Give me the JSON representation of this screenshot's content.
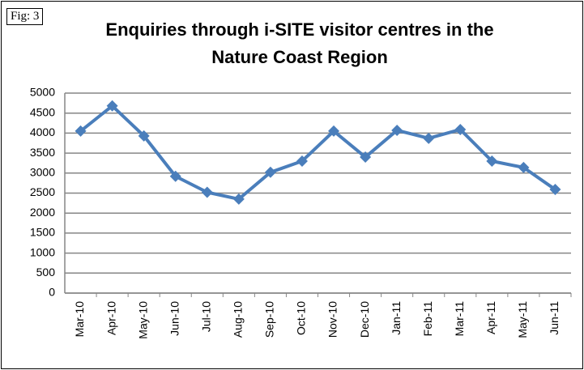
{
  "chart_data": {
    "type": "line",
    "annotation": "Fig: 3",
    "title": "Enquiries through i-SITE visitor centres in the Nature Coast Region",
    "categories": [
      "Mar-10",
      "Apr-10",
      "May-10",
      "Jun-10",
      "Jul-10",
      "Aug-10",
      "Sep-10",
      "Oct-10",
      "Nov-10",
      "Dec-10",
      "Jan-11",
      "Feb-11",
      "Mar-11",
      "Apr-11",
      "May-11",
      "Jun-11"
    ],
    "values": [
      4050,
      4680,
      3930,
      2920,
      2520,
      2350,
      3020,
      3300,
      4050,
      3400,
      4070,
      3870,
      4090,
      3300,
      3140,
      2590
    ],
    "color": "#4a7ebb",
    "ylim": [
      0,
      5000
    ],
    "yticks": [
      0,
      500,
      1000,
      1500,
      2000,
      2500,
      3000,
      3500,
      4000,
      4500,
      5000
    ],
    "grid": true
  }
}
